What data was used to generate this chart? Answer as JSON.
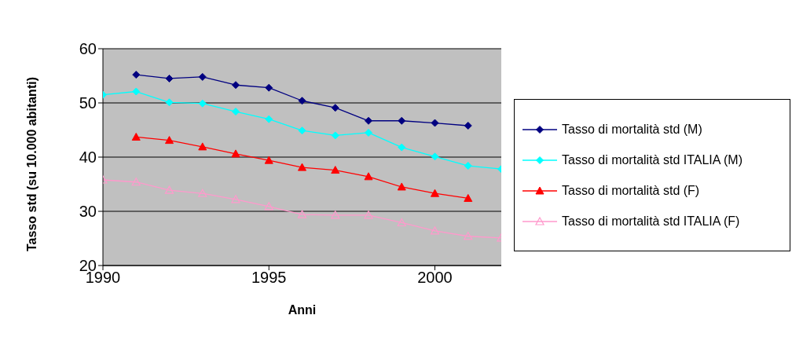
{
  "chart_data": {
    "type": "line",
    "xlabel": "Anni",
    "ylabel": "Tasso std (su 10.000 abitanti)",
    "x": [
      1990,
      1991,
      1992,
      1993,
      1994,
      1995,
      1996,
      1997,
      1998,
      1999,
      2000,
      2001,
      2002
    ],
    "series": [
      {
        "name": "Tasso di mortalità std (M)",
        "color": "#000080",
        "marker": "diamond",
        "values": [
          null,
          55.2,
          54.5,
          54.8,
          53.3,
          52.8,
          50.4,
          49.1,
          46.7,
          46.7,
          46.3,
          45.8,
          null
        ]
      },
      {
        "name": "Tasso di mortalità std ITALIA (M)",
        "color": "#00ffff",
        "marker": "diamond",
        "values": [
          51.5,
          52.1,
          50.1,
          49.9,
          48.4,
          47.0,
          44.9,
          44.0,
          44.5,
          41.8,
          40.1,
          38.4,
          37.8
        ]
      },
      {
        "name": "Tasso di mortalità std (F)",
        "color": "#ff0000",
        "marker": "triangle",
        "values": [
          null,
          43.7,
          43.1,
          41.9,
          40.6,
          39.4,
          38.1,
          37.6,
          36.4,
          34.5,
          33.3,
          32.4,
          null
        ]
      },
      {
        "name": "Tasso di mortalità std ITALIA (F)",
        "color": "#ff99cc",
        "marker": "triangle-open",
        "values": [
          35.8,
          35.4,
          33.9,
          33.3,
          32.2,
          30.9,
          29.4,
          29.3,
          29.3,
          27.9,
          26.4,
          25.4,
          25.1
        ]
      }
    ],
    "xlim": [
      1990,
      2002
    ],
    "xticks": [
      1990,
      1995,
      2000
    ],
    "ylim": [
      20,
      60
    ],
    "yticks": [
      20,
      30,
      40,
      50,
      60
    ],
    "grid": "y",
    "legend": "right"
  }
}
